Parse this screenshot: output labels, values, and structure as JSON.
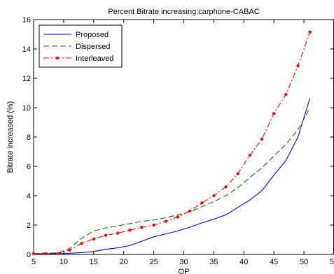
{
  "chart_data": {
    "type": "line",
    "title": "Percent Bitrate increasing:carphone-CABAC",
    "xlabel": "QP",
    "ylabel": "Bitrate increased (%)",
    "xlim": [
      5,
      55
    ],
    "ylim": [
      0,
      16
    ],
    "xticks": [
      5,
      10,
      15,
      20,
      25,
      30,
      35,
      40,
      45,
      50,
      55
    ],
    "yticks": [
      0,
      2,
      4,
      6,
      8,
      10,
      12,
      14,
      16
    ],
    "grid": false,
    "legend_position": "top-left",
    "series": [
      {
        "name": "Proposed",
        "color": "#0000ff",
        "style": "solid",
        "marker": "none",
        "x": [
          5,
          7,
          9,
          11,
          13,
          15,
          17,
          19,
          21,
          23,
          25,
          27,
          29,
          31,
          33,
          35,
          37,
          39,
          41,
          43,
          45,
          47,
          49,
          51
        ],
        "y": [
          0.05,
          0.05,
          0.05,
          0.08,
          0.12,
          0.2,
          0.35,
          0.45,
          0.6,
          0.9,
          1.2,
          1.4,
          1.6,
          1.85,
          2.15,
          2.4,
          2.7,
          3.2,
          3.7,
          4.35,
          5.4,
          6.4,
          8.0,
          10.65
        ]
      },
      {
        "name": "Dispersed",
        "color": "#008000",
        "style": "dashed",
        "marker": "none",
        "x": [
          5,
          7,
          9,
          11,
          13,
          15,
          17,
          19,
          21,
          23,
          25,
          27,
          29,
          31,
          33,
          35,
          37,
          39,
          41,
          43,
          45,
          47,
          49,
          51
        ],
        "y": [
          0.05,
          0.1,
          0.1,
          0.4,
          1.1,
          1.6,
          1.8,
          1.95,
          2.1,
          2.25,
          2.35,
          2.5,
          2.7,
          2.9,
          3.25,
          3.6,
          4.0,
          4.55,
          5.25,
          5.9,
          6.7,
          7.5,
          8.5,
          10.0
        ]
      },
      {
        "name": "Interleaved",
        "color": "#ff0000",
        "style": "dashdot",
        "marker": "dot",
        "x": [
          5,
          7,
          9,
          11,
          13,
          15,
          17,
          19,
          21,
          23,
          25,
          27,
          29,
          31,
          33,
          35,
          37,
          39,
          41,
          43,
          45,
          47,
          49,
          51
        ],
        "y": [
          0.05,
          0.05,
          0.05,
          0.3,
          0.75,
          1.05,
          1.3,
          1.45,
          1.65,
          1.85,
          2.0,
          2.25,
          2.55,
          2.95,
          3.5,
          4.0,
          4.6,
          5.5,
          6.75,
          7.85,
          9.6,
          10.9,
          12.85,
          15.15
        ]
      }
    ]
  }
}
